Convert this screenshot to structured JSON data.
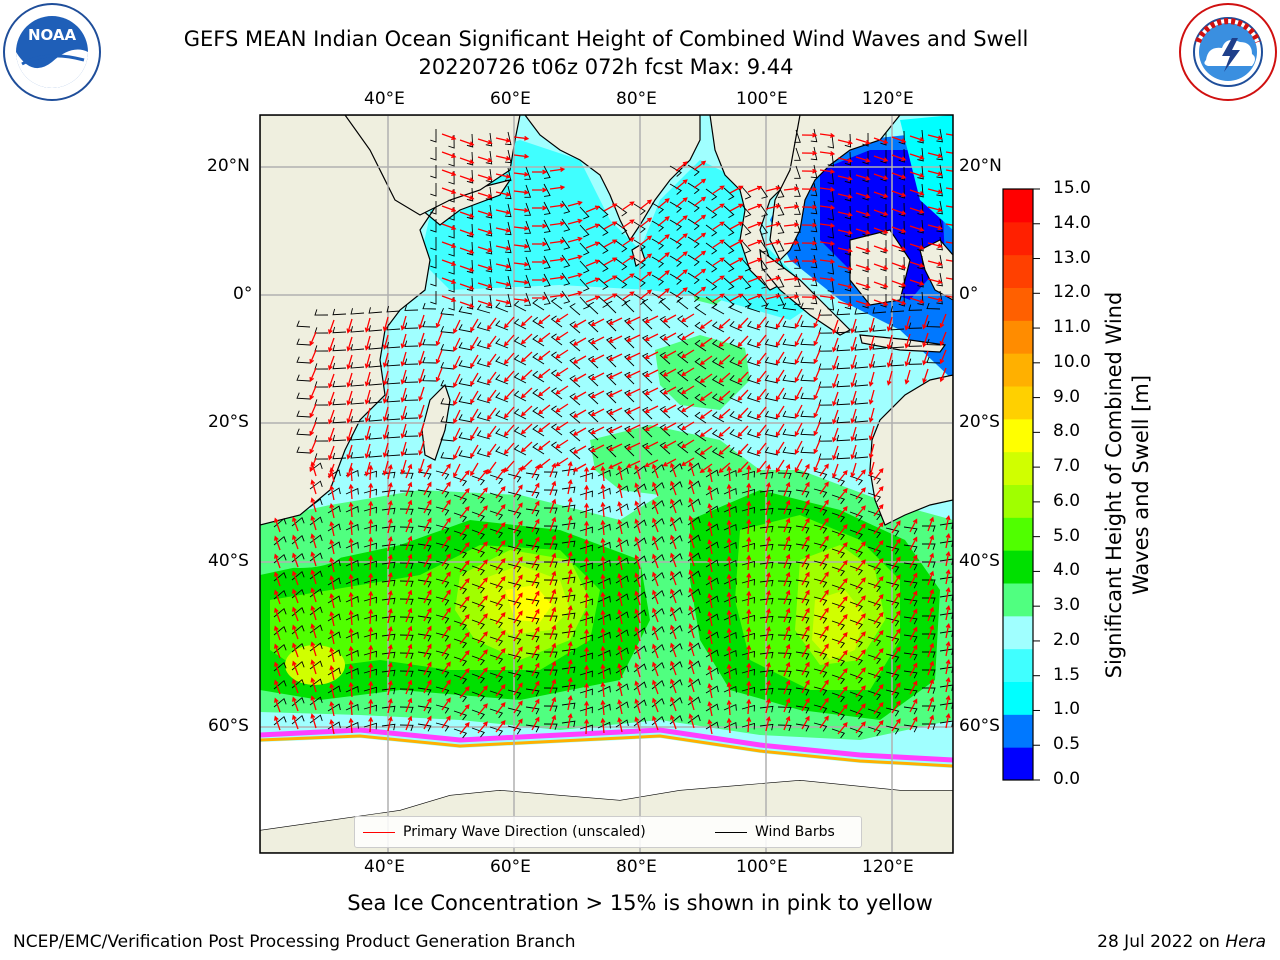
{
  "header": {
    "title_line1": "GEFS MEAN Indian Ocean Significant Height of Combined Wind Waves and Swell",
    "title_line2": "20220726 t06z 072h fcst   Max: 9.44"
  },
  "logos": {
    "left": {
      "icon": "noaa-logo-icon",
      "text": "NOAA",
      "ring_text": "NATIONAL OCEANIC AND ATMOSPHERIC ADMINISTRATION · U.S. DEPARTMENT OF COMMERCE"
    },
    "right": {
      "icon": "nws-logo-icon",
      "ring_text": "NATIONAL WEATHER SERVICE"
    }
  },
  "map": {
    "region": "Indian Ocean",
    "lon_range": [
      20,
      130
    ],
    "lat_range": [
      -73,
      27
    ],
    "lon_ticks_top": [
      "40°E",
      "60°E",
      "80°E",
      "100°E",
      "120°E"
    ],
    "lon_ticks_bottom": [
      "40°E",
      "60°E",
      "80°E",
      "100°E",
      "120°E"
    ],
    "lat_ticks_left": [
      "20°N",
      "0°",
      "20°S",
      "40°S",
      "60°S"
    ],
    "lat_ticks_right": [
      "20°N",
      "0°",
      "20°S",
      "40°S",
      "60°S"
    ],
    "land_color": "#efefdf",
    "gridlines": true,
    "colorbar": {
      "label": "Significant Height of Combined Wind Waves and Swell [m]",
      "ticks": [
        "15.0",
        "14.0",
        "13.0",
        "12.0",
        "11.0",
        "10.0",
        "9.0",
        "8.0",
        "7.0",
        "6.0",
        "5.0",
        "4.0",
        "3.0",
        "2.0",
        "1.5",
        "1.0",
        "0.5",
        "0.0"
      ],
      "colors": [
        "#0000ff",
        "#0078ff",
        "#00ffff",
        "#40ffff",
        "#a0ffff",
        "#50ff80",
        "#00e000",
        "#50ff00",
        "#a0ff00",
        "#d0ff00",
        "#ffff00",
        "#ffd000",
        "#ffb000",
        "#ff8c00",
        "#ff6000",
        "#ff4000",
        "#ff2000",
        "#ff0000"
      ]
    },
    "legend": {
      "items": [
        {
          "label": "Primary Wave Direction (unscaled)",
          "color": "#ff0000"
        },
        {
          "label": "Wind Barbs",
          "color": "#000000"
        }
      ]
    }
  },
  "notes": {
    "sea_ice": "Sea Ice Concentration > 15% is shown in pink to yellow"
  },
  "footer": {
    "left": "NCEP/EMC/Verification Post Processing Product Generation Branch",
    "date": "28 Jul 2022 on ",
    "machine": "Hera"
  }
}
